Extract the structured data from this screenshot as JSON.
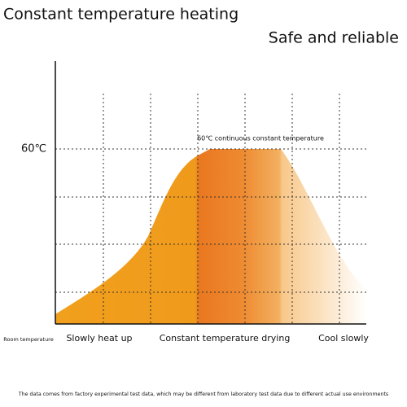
{
  "header": {
    "title": "Constant temperature heating",
    "subtitle": "Safe and reliable"
  },
  "diagram": {
    "y_label": "60℃",
    "annotation": "60℃ continuous constant temperature",
    "origin_label": "Room temperature",
    "phases": [
      "Slowly heat up",
      "Constant temperature drying",
      "Cool slowly"
    ]
  },
  "footer": "The data comes from factory experimental test data, which may be different from laboratory test data due to different actual use environments"
}
